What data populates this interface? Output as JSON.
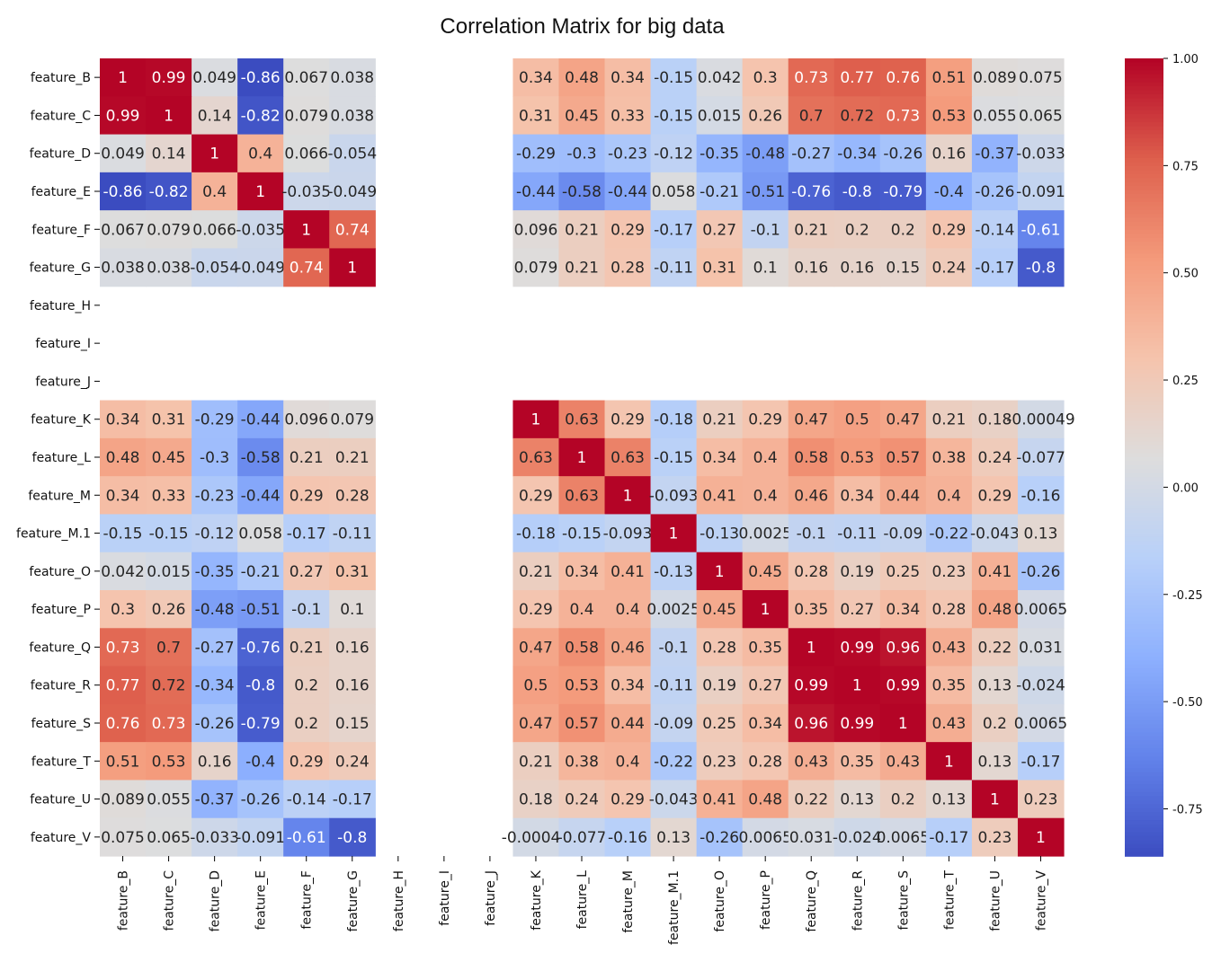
{
  "chart_data": {
    "type": "heatmap",
    "title": "Correlation Matrix for big data",
    "xlabel": "",
    "ylabel": "",
    "colormap": "coolwarm",
    "colorbar": {
      "vmin": -0.86,
      "vmax": 1.0,
      "ticks": [
        "1.00",
        "0.75",
        "0.50",
        "0.25",
        "0.00",
        "-0.25",
        "-0.50",
        "-0.75"
      ],
      "tick_values": [
        1.0,
        0.75,
        0.5,
        0.25,
        0.0,
        -0.25,
        -0.5,
        -0.75
      ]
    },
    "labels": [
      "feature_B",
      "feature_C",
      "feature_D",
      "feature_E",
      "feature_F",
      "feature_G",
      "feature_H",
      "feature_I",
      "feature_J",
      "feature_K",
      "feature_L",
      "feature_M",
      "feature_M.1",
      "feature_O",
      "feature_P",
      "feature_Q",
      "feature_R",
      "feature_S",
      "feature_T",
      "feature_U",
      "feature_V"
    ],
    "matrix": [
      [
        1,
        0.99,
        0.049,
        -0.86,
        0.067,
        0.038,
        null,
        null,
        null,
        0.34,
        0.48,
        0.34,
        -0.15,
        0.042,
        0.3,
        0.73,
        0.77,
        0.76,
        0.51,
        0.089,
        0.075
      ],
      [
        0.99,
        1,
        0.14,
        -0.82,
        0.079,
        0.038,
        null,
        null,
        null,
        0.31,
        0.45,
        0.33,
        -0.15,
        0.015,
        0.26,
        0.7,
        0.72,
        0.73,
        0.53,
        0.055,
        0.065
      ],
      [
        0.049,
        0.14,
        1,
        0.4,
        0.066,
        -0.054,
        null,
        null,
        null,
        -0.29,
        -0.3,
        -0.23,
        -0.12,
        -0.35,
        -0.48,
        -0.27,
        -0.34,
        -0.26,
        0.16,
        -0.37,
        -0.033
      ],
      [
        -0.86,
        -0.82,
        0.4,
        1,
        -0.035,
        -0.049,
        null,
        null,
        null,
        -0.44,
        -0.58,
        -0.44,
        0.058,
        -0.21,
        -0.51,
        -0.76,
        -0.8,
        -0.79,
        -0.4,
        -0.26,
        -0.091
      ],
      [
        0.067,
        0.079,
        0.066,
        -0.035,
        1,
        0.74,
        null,
        null,
        null,
        0.096,
        0.21,
        0.29,
        -0.17,
        0.27,
        -0.1,
        0.21,
        0.2,
        0.2,
        0.29,
        -0.14,
        -0.61
      ],
      [
        0.038,
        0.038,
        -0.054,
        -0.049,
        0.74,
        1,
        null,
        null,
        null,
        0.079,
        0.21,
        0.28,
        -0.11,
        0.31,
        0.1,
        0.16,
        0.16,
        0.15,
        0.24,
        -0.17,
        -0.8
      ],
      [
        null,
        null,
        null,
        null,
        null,
        null,
        null,
        null,
        null,
        null,
        null,
        null,
        null,
        null,
        null,
        null,
        null,
        null,
        null,
        null,
        null
      ],
      [
        null,
        null,
        null,
        null,
        null,
        null,
        null,
        null,
        null,
        null,
        null,
        null,
        null,
        null,
        null,
        null,
        null,
        null,
        null,
        null,
        null
      ],
      [
        null,
        null,
        null,
        null,
        null,
        null,
        null,
        null,
        null,
        null,
        null,
        null,
        null,
        null,
        null,
        null,
        null,
        null,
        null,
        null,
        null
      ],
      [
        0.34,
        0.31,
        -0.29,
        -0.44,
        0.096,
        0.079,
        null,
        null,
        null,
        1,
        0.63,
        0.29,
        -0.18,
        0.21,
        0.29,
        0.47,
        0.5,
        0.47,
        0.21,
        0.18,
        -0.00049
      ],
      [
        0.48,
        0.45,
        -0.3,
        -0.58,
        0.21,
        0.21,
        null,
        null,
        null,
        0.63,
        1,
        0.63,
        -0.15,
        0.34,
        0.4,
        0.58,
        0.53,
        0.57,
        0.38,
        0.24,
        -0.077
      ],
      [
        0.34,
        0.33,
        -0.23,
        -0.44,
        0.29,
        0.28,
        null,
        null,
        null,
        0.29,
        0.63,
        1,
        -0.093,
        0.41,
        0.4,
        0.46,
        0.34,
        0.44,
        0.4,
        0.29,
        -0.16
      ],
      [
        -0.15,
        -0.15,
        -0.12,
        0.058,
        -0.17,
        -0.11,
        null,
        null,
        null,
        -0.18,
        -0.15,
        -0.093,
        1,
        -0.13,
        0.0025,
        -0.1,
        -0.11,
        -0.09,
        -0.22,
        -0.043,
        0.13
      ],
      [
        0.042,
        0.015,
        -0.35,
        -0.21,
        0.27,
        0.31,
        null,
        null,
        null,
        0.21,
        0.34,
        0.41,
        -0.13,
        1,
        0.45,
        0.28,
        0.19,
        0.25,
        0.23,
        0.41,
        -0.26
      ],
      [
        0.3,
        0.26,
        -0.48,
        -0.51,
        -0.1,
        0.1,
        null,
        null,
        null,
        0.29,
        0.4,
        0.4,
        0.0025,
        0.45,
        1,
        0.35,
        0.27,
        0.34,
        0.28,
        0.48,
        0.0065
      ],
      [
        0.73,
        0.7,
        -0.27,
        -0.76,
        0.21,
        0.16,
        null,
        null,
        null,
        0.47,
        0.58,
        0.46,
        -0.1,
        0.28,
        0.35,
        1,
        0.99,
        0.96,
        0.43,
        0.22,
        0.031
      ],
      [
        0.77,
        0.72,
        -0.34,
        -0.8,
        0.2,
        0.16,
        null,
        null,
        null,
        0.5,
        0.53,
        0.34,
        -0.11,
        0.19,
        0.27,
        0.99,
        1,
        0.99,
        0.35,
        0.13,
        -0.024
      ],
      [
        0.76,
        0.73,
        -0.26,
        -0.79,
        0.2,
        0.15,
        null,
        null,
        null,
        0.47,
        0.57,
        0.44,
        -0.09,
        0.25,
        0.34,
        0.96,
        0.99,
        1,
        0.43,
        0.2,
        0.0065
      ],
      [
        0.51,
        0.53,
        0.16,
        -0.4,
        0.29,
        0.24,
        null,
        null,
        null,
        0.21,
        0.38,
        0.4,
        -0.22,
        0.23,
        0.28,
        0.43,
        0.35,
        0.43,
        1,
        0.13,
        -0.17
      ],
      [
        0.089,
        0.055,
        -0.37,
        -0.26,
        -0.14,
        -0.17,
        null,
        null,
        null,
        0.18,
        0.24,
        0.29,
        -0.043,
        0.41,
        0.48,
        0.22,
        0.13,
        0.2,
        0.13,
        1,
        0.23
      ],
      [
        0.075,
        0.065,
        -0.033,
        -0.091,
        -0.61,
        -0.8,
        null,
        null,
        null,
        -0.00049,
        -0.077,
        -0.16,
        0.13,
        -0.26,
        0.0065,
        0.031,
        -0.024,
        0.0065,
        -0.17,
        0.23,
        1
      ]
    ]
  }
}
